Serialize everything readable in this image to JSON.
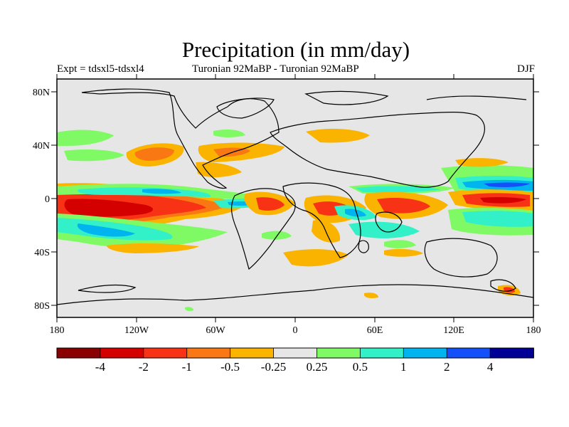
{
  "title": "Precipitation (in mm/day)",
  "subtitle_left": "Expt = tdsxl5-tdsxl4",
  "subtitle_center": "Turonian  92MaBP - Turonian  92MaBP",
  "subtitle_right": "DJF",
  "lat_ticks": [
    "80N",
    "40N",
    "0",
    "40S",
    "80S"
  ],
  "lon_ticks": [
    "180",
    "120W",
    "60W",
    "0",
    "60E",
    "120E",
    "180"
  ],
  "colorbar": {
    "colors": [
      "#8b0000",
      "#d40000",
      "#f83214",
      "#fa7814",
      "#fab400",
      "#e6e6e6",
      "#80fa64",
      "#32f0c8",
      "#00b4f0",
      "#1450fa",
      "#000096"
    ],
    "labels": [
      "-4",
      "-2",
      "-1",
      "-0.5",
      "-0.25",
      "0.25",
      "0.5",
      "1",
      "2",
      "4"
    ]
  },
  "colors": {
    "background": "#e6e6e6",
    "coast": "#000000"
  }
}
